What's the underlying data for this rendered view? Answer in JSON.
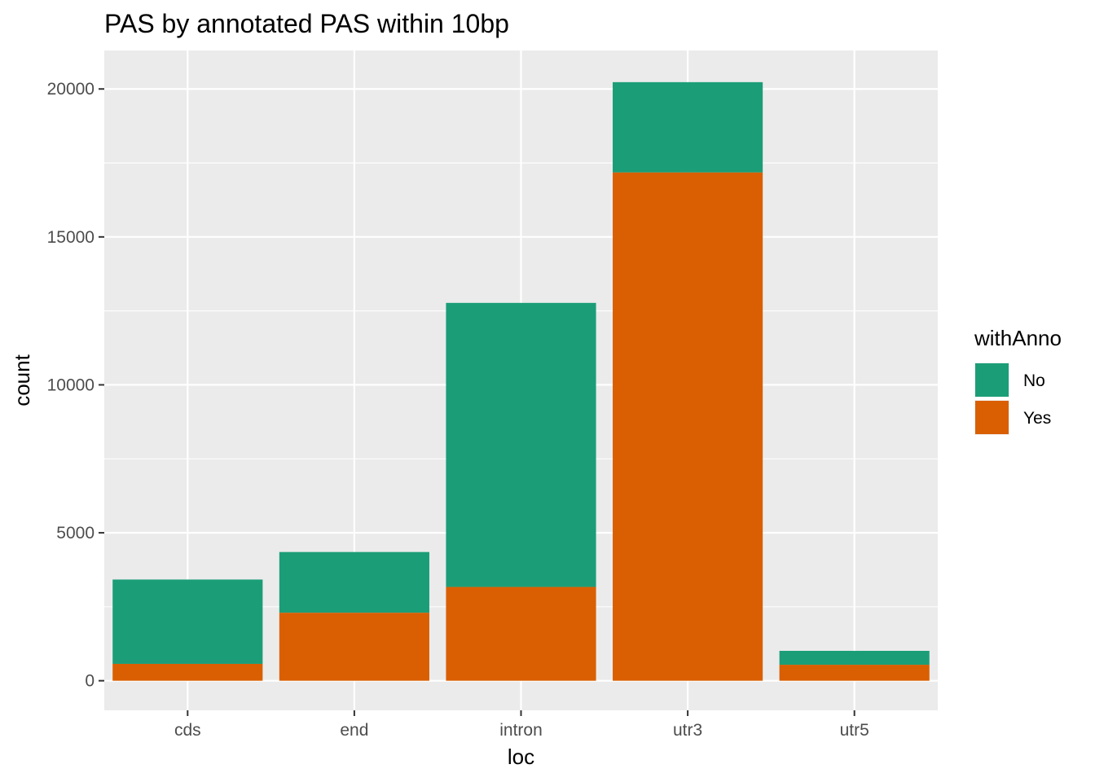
{
  "chart_data": {
    "type": "bar",
    "stacked": true,
    "title": "PAS by annotated PAS within 10bp",
    "xlabel": "loc",
    "ylabel": "count",
    "categories": [
      "cds",
      "end",
      "intron",
      "utr3",
      "utr5"
    ],
    "series": [
      {
        "name": "No",
        "color": "#1b9e77",
        "values": [
          2850,
          2050,
          9600,
          3050,
          470
        ]
      },
      {
        "name": "Yes",
        "color": "#d95f02",
        "values": [
          570,
          2300,
          3170,
          17180,
          540
        ]
      }
    ],
    "y_ticks": [
      0,
      5000,
      10000,
      15000,
      20000
    ],
    "ylim": [
      -1000,
      21300
    ],
    "legend": {
      "title": "withAnno",
      "position": "right"
    },
    "grid": true,
    "panel_background": "#ebebeb",
    "grid_color": "#ffffff"
  }
}
